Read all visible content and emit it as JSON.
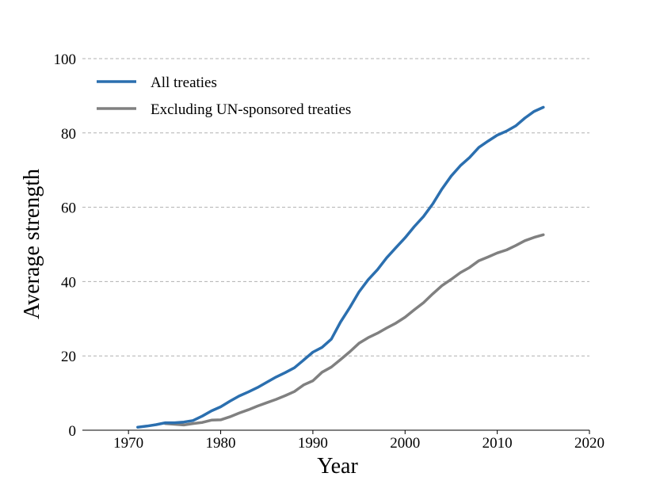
{
  "chart_data": {
    "type": "line",
    "title": "",
    "xlabel": "Year",
    "ylabel": "Average strength",
    "xlim": [
      1965,
      2020
    ],
    "ylim": [
      0,
      100
    ],
    "xticks": [
      1970,
      1980,
      1990,
      2000,
      2010,
      2020
    ],
    "yticks": [
      0,
      20,
      40,
      60,
      80,
      100
    ],
    "grid": "horizontal dashed",
    "legend_position": "top-left",
    "series": [
      {
        "name": "All treaties",
        "color": "#2b6faf",
        "x": [
          1971,
          1972,
          1973,
          1974,
          1975,
          1976,
          1977,
          1978,
          1979,
          1980,
          1981,
          1982,
          1983,
          1984,
          1985,
          1986,
          1987,
          1988,
          1989,
          1990,
          1991,
          1992,
          1993,
          1994,
          1995,
          1996,
          1997,
          1998,
          1999,
          2000,
          2001,
          2002,
          2003,
          2004,
          2005,
          2006,
          2007,
          2008,
          2009,
          2010,
          2011,
          2012,
          2013,
          2014,
          2015
        ],
        "y": [
          0.8,
          1.1,
          1.5,
          2.0,
          2.0,
          2.2,
          2.6,
          3.8,
          5.2,
          6.3,
          7.8,
          9.2,
          10.3,
          11.5,
          12.9,
          14.3,
          15.5,
          16.8,
          18.9,
          21.0,
          22.3,
          24.5,
          29.1,
          33.0,
          37.2,
          40.5,
          43.2,
          46.4,
          49.1,
          51.8,
          54.8,
          57.5,
          60.9,
          64.9,
          68.4,
          71.2,
          73.4,
          76.1,
          77.8,
          79.4,
          80.5,
          81.9,
          84.0,
          85.8,
          86.9
        ]
      },
      {
        "name": "Excluding UN-sponsored treaties",
        "color": "#808080",
        "x": [
          1974,
          1975,
          1976,
          1977,
          1978,
          1979,
          1980,
          1981,
          1982,
          1983,
          1984,
          1985,
          1986,
          1987,
          1988,
          1989,
          1990,
          1991,
          1992,
          1993,
          1994,
          1995,
          1996,
          1997,
          1998,
          1999,
          2000,
          2001,
          2002,
          2003,
          2004,
          2005,
          2006,
          2007,
          2008,
          2009,
          2010,
          2011,
          2012,
          2013,
          2014,
          2015
        ],
        "y": [
          1.8,
          1.6,
          1.4,
          1.8,
          2.1,
          2.7,
          2.8,
          3.6,
          4.6,
          5.5,
          6.5,
          7.4,
          8.3,
          9.3,
          10.4,
          12.2,
          13.3,
          15.6,
          17.0,
          19.0,
          21.1,
          23.4,
          24.9,
          26.1,
          27.5,
          28.8,
          30.4,
          32.4,
          34.3,
          36.7,
          38.9,
          40.6,
          42.4,
          43.8,
          45.6,
          46.6,
          47.7,
          48.5,
          49.7,
          51.0,
          51.9,
          52.6
        ]
      }
    ]
  }
}
